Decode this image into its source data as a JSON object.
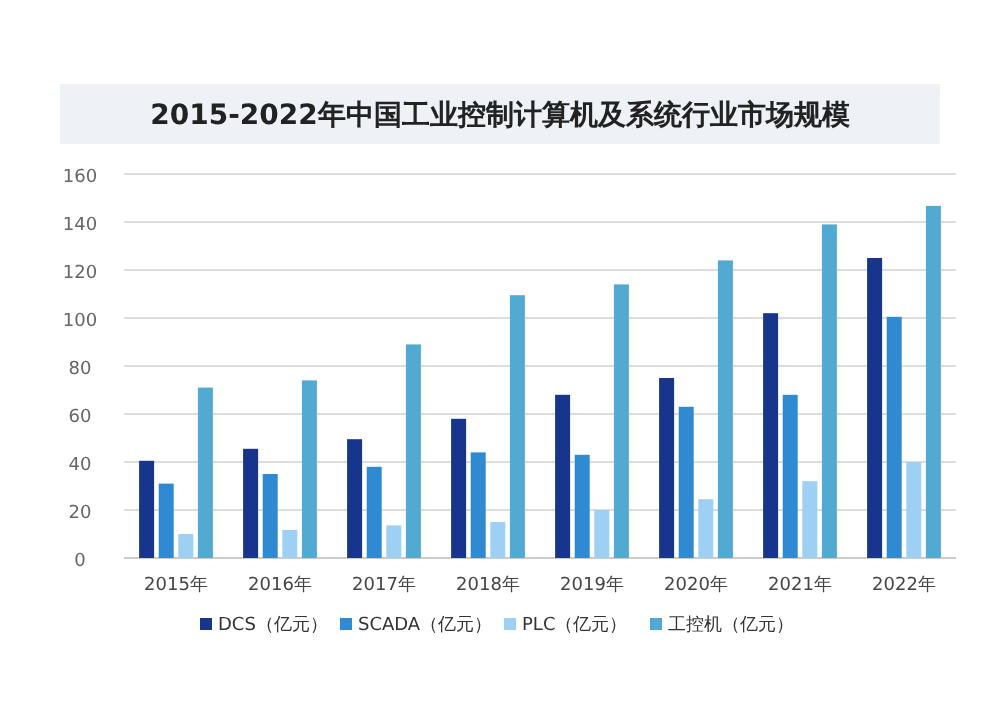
{
  "chart_data": {
    "type": "bar",
    "title": "2015-2022年中国工业控制计算机及系统行业市场规模",
    "categories": [
      "2015年",
      "2016年",
      "2017年",
      "2018年",
      "2019年",
      "2020年",
      "2021年",
      "2022年"
    ],
    "series": [
      {
        "name": "DCS（亿元）",
        "color": "#17358a",
        "values": [
          40.5,
          45.5,
          49.5,
          58,
          68,
          75,
          102,
          125
        ]
      },
      {
        "name": "SCADA（亿元）",
        "color": "#2f8ad2",
        "values": [
          31,
          35,
          38,
          44,
          43,
          63,
          68,
          100.5
        ]
      },
      {
        "name": "PLC（亿元）",
        "color": "#9dd0f2",
        "values": [
          10,
          11.7,
          13.6,
          15,
          20,
          24.5,
          32,
          40
        ]
      },
      {
        "name": "工控机（亿元）",
        "color": "#52a9d2",
        "values": [
          71,
          74,
          89,
          109.5,
          114,
          124,
          139,
          146.7
        ]
      }
    ],
    "ylim": [
      0,
      160
    ],
    "yticks": [
      0,
      20,
      40,
      60,
      80,
      100,
      120,
      140,
      160
    ],
    "grid": "y",
    "legend": "bottom"
  }
}
